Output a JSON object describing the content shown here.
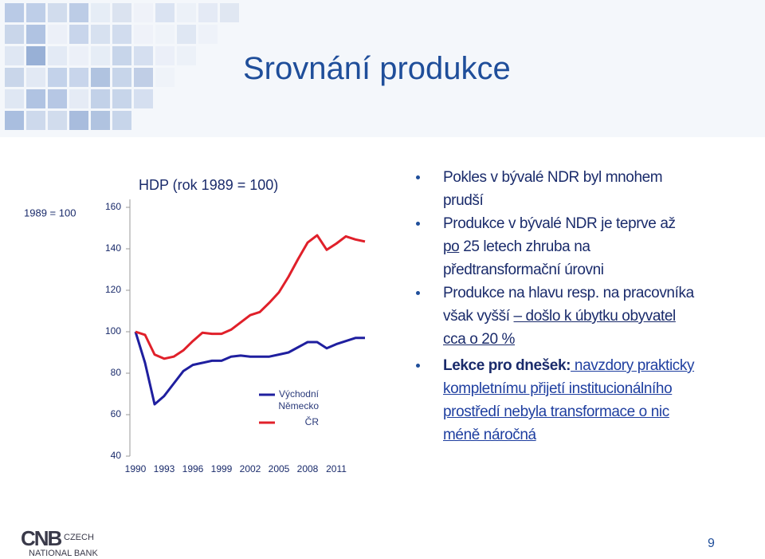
{
  "header": {
    "title": "Srovnání produkce"
  },
  "chart_data": {
    "type": "line",
    "title": "HDP (rok 1989 = 100)",
    "y_label": "1989 = 100",
    "x": [
      1990,
      1991,
      1992,
      1993,
      1994,
      1995,
      1996,
      1997,
      1998,
      1999,
      2000,
      2001,
      2002,
      2003,
      2004,
      2005,
      2006,
      2007,
      2008,
      2009,
      2010,
      2011,
      2012,
      2013,
      2014
    ],
    "xlim": [
      1990,
      2014
    ],
    "xticks": [
      1990,
      1993,
      1996,
      1999,
      2002,
      2005,
      2008,
      2011
    ],
    "ylim": [
      40,
      160
    ],
    "yticks": [
      40,
      60,
      80,
      100,
      120,
      140,
      160
    ],
    "series": [
      {
        "name": "Východní Německo",
        "color": "#1f1f9f",
        "values": [
          100,
          85,
          65,
          69,
          75,
          81,
          84,
          85,
          86,
          86,
          88,
          88.5,
          88,
          88,
          88,
          89,
          90,
          92.5,
          95,
          95,
          92,
          94,
          95.5,
          97,
          97
        ]
      },
      {
        "name": "ČR",
        "color": "#e0202a",
        "values": [
          100,
          98.5,
          89,
          87,
          88,
          91,
          95.5,
          99.5,
          99,
          99,
          101,
          104.5,
          108,
          109.5,
          114,
          119,
          126.5,
          135,
          143,
          146.5,
          139.5,
          142.5,
          146,
          144.5,
          143.5
        ]
      }
    ]
  },
  "bullets": [
    [
      {
        "text": "Pokles v bývalé NDR byl mnohem prudší",
        "style": "plain"
      }
    ],
    [
      {
        "text": "Produkce v bývalé NDR je teprve až ",
        "style": "plain"
      },
      {
        "text": "po",
        "style": "underline"
      },
      {
        "text": " 25 letech zhruba na předtransformační úrovni",
        "style": "plain"
      }
    ],
    [
      {
        "text": "Produkce na hlavu resp. na pracovníka však vyšší ",
        "style": "plain"
      },
      {
        "text": "– došlo k úbytku obyvatel cca o 20 %",
        "style": "underline"
      }
    ],
    [
      {
        "text": "Lekce pro dnešek:",
        "style": "bold"
      },
      {
        "text": " navzdory prakticky kompletnímu přijetí institucionálního prostředí nebyla transformace o nic méně náročná",
        "style": "link"
      }
    ]
  ],
  "footer": {
    "logo": "CNB",
    "logo_line1": "CZECH",
    "logo_line2": "NATIONAL BANK",
    "page": "9"
  }
}
